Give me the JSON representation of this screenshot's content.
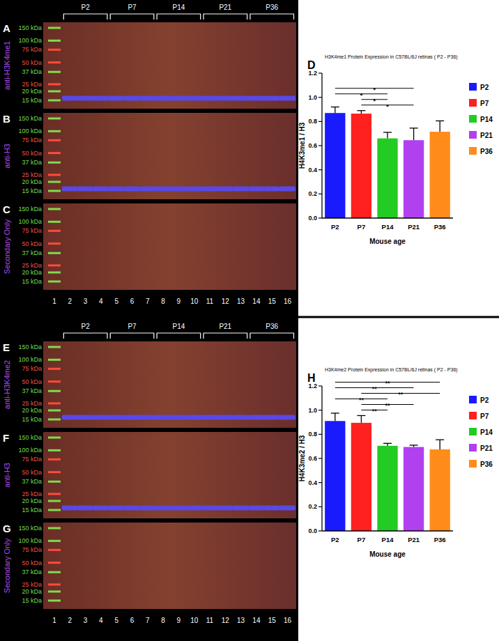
{
  "blots": [
    {
      "groups": [
        {
          "label": "P2",
          "lanes": [
            2,
            4
          ]
        },
        {
          "label": "P7",
          "lanes": [
            5,
            7
          ]
        },
        {
          "label": "P14",
          "lanes": [
            8,
            10
          ]
        },
        {
          "label": "P21",
          "lanes": [
            11,
            13
          ]
        },
        {
          "label": "P36",
          "lanes": [
            14,
            16
          ]
        }
      ],
      "lanes": [
        1,
        2,
        3,
        4,
        5,
        6,
        7,
        8,
        9,
        10,
        11,
        12,
        13,
        14,
        15,
        16
      ],
      "ladder": [
        {
          "value": 150,
          "label": "150 kDa",
          "color": "#7fdc4f"
        },
        {
          "value": 100,
          "label": "100 kDa",
          "color": "#7fdc4f"
        },
        {
          "value": 75,
          "label": "75 kDa",
          "color": "#ff4b3a"
        },
        {
          "value": 50,
          "label": "50 kDa",
          "color": "#ff4b3a"
        },
        {
          "value": 37,
          "label": "37 kDa",
          "color": "#7fdc4f"
        },
        {
          "value": 25,
          "label": "25 kDa",
          "color": "#ff4b3a"
        },
        {
          "value": 20,
          "label": "20 kDa",
          "color": "#7fdc4f"
        },
        {
          "value": 15,
          "label": "15 kDa",
          "color": "#7fdc4f"
        }
      ],
      "panels": [
        {
          "letter": "A",
          "label": "anti-H3K4me1",
          "band_kda": 16
        },
        {
          "letter": "B",
          "label": "anti-H3",
          "band_kda": 16
        },
        {
          "letter": "C",
          "label": "Secondary Only",
          "band_kda": null
        }
      ]
    },
    {
      "groups": [
        {
          "label": "P2",
          "lanes": [
            2,
            4
          ]
        },
        {
          "label": "P7",
          "lanes": [
            5,
            7
          ]
        },
        {
          "label": "P14",
          "lanes": [
            8,
            10
          ]
        },
        {
          "label": "P21",
          "lanes": [
            11,
            13
          ]
        },
        {
          "label": "P36",
          "lanes": [
            14,
            16
          ]
        }
      ],
      "lanes": [
        1,
        2,
        3,
        4,
        5,
        6,
        7,
        8,
        9,
        10,
        11,
        12,
        13,
        14,
        15,
        16
      ],
      "ladder": [
        {
          "value": 150,
          "label": "150 kDa",
          "color": "#7fdc4f"
        },
        {
          "value": 100,
          "label": "100 kDa",
          "color": "#7fdc4f"
        },
        {
          "value": 75,
          "label": "75 kDa",
          "color": "#ff4b3a"
        },
        {
          "value": 50,
          "label": "50 kDa",
          "color": "#ff4b3a"
        },
        {
          "value": 37,
          "label": "37 kDa",
          "color": "#7fdc4f"
        },
        {
          "value": 25,
          "label": "25 kDa",
          "color": "#ff4b3a"
        },
        {
          "value": 20,
          "label": "20 kDa",
          "color": "#7fdc4f"
        },
        {
          "value": 15,
          "label": "15 kDa",
          "color": "#7fdc4f"
        }
      ],
      "panels": [
        {
          "letter": "E",
          "label": "anti-H3K4me2",
          "band_kda": 16
        },
        {
          "letter": "F",
          "label": "anti-H3",
          "band_kda": 16
        },
        {
          "letter": "G",
          "label": "Secondary Only",
          "band_kda": null
        }
      ]
    }
  ],
  "chart_data": [
    {
      "type": "bar",
      "panel": "D",
      "title": "H3K4me1 Protein Expression in C57BL/6J retinas ( P2 - P36)",
      "x_label": "Mouse age",
      "y_label": "H4K3me1 / H3",
      "categories": [
        "P2",
        "P7",
        "P14",
        "P21",
        "P36"
      ],
      "values": [
        0.87,
        0.865,
        0.66,
        0.645,
        0.715
      ],
      "errors": [
        0.05,
        0.025,
        0.05,
        0.1,
        0.09
      ],
      "colors": [
        "#1a1aff",
        "#ff2020",
        "#22cc22",
        "#b040f0",
        "#ff8c1a"
      ],
      "ylim": [
        0,
        1.2
      ],
      "yticks": [
        {
          "value": 0,
          "label": "0.0"
        },
        {
          "value": 0.2,
          "label": "0.2"
        },
        {
          "value": 0.4,
          "label": "0.4"
        },
        {
          "value": 0.6,
          "label": "0.6"
        },
        {
          "value": 0.8,
          "label": "0.8"
        },
        {
          "value": 1,
          "label": "1.0"
        },
        {
          "value": 1.2,
          "label": "1.2"
        }
      ],
      "legend": "right",
      "annotations": [
        {
          "text": "*",
          "between": [
            "P2",
            "P21"
          ]
        },
        {
          "text": "*",
          "between": [
            "P2",
            "P14"
          ]
        },
        {
          "text": "*",
          "between": [
            "P7",
            "P14"
          ]
        },
        {
          "text": "*",
          "between": [
            "P7",
            "P21"
          ]
        }
      ]
    },
    {
      "type": "bar",
      "panel": "H",
      "title": "H3K4me2 Protein Expression in C57BL/6J retinas ( P2 - P36)",
      "x_label": "Mouse age",
      "y_label": "H4K3me2 / H3",
      "categories": [
        "P2",
        "P7",
        "P14",
        "P21",
        "P36"
      ],
      "values": [
        0.91,
        0.895,
        0.705,
        0.695,
        0.675
      ],
      "errors": [
        0.065,
        0.06,
        0.02,
        0.015,
        0.08
      ],
      "colors": [
        "#1a1aff",
        "#ff2020",
        "#22cc22",
        "#b040f0",
        "#ff8c1a"
      ],
      "ylim": [
        0,
        1.2
      ],
      "yticks": [
        {
          "value": 0,
          "label": "0.0"
        },
        {
          "value": 0.2,
          "label": "0.2"
        },
        {
          "value": 0.4,
          "label": "0.4"
        },
        {
          "value": 0.6,
          "label": "0.6"
        },
        {
          "value": 0.8,
          "label": "0.8"
        },
        {
          "value": 1,
          "label": "1.0"
        },
        {
          "value": 1.2,
          "label": "1.2"
        }
      ],
      "legend": "right",
      "annotations": [
        {
          "text": "**",
          "between": [
            "P2",
            "P36"
          ]
        },
        {
          "text": "**",
          "between": [
            "P2",
            "P21"
          ]
        },
        {
          "text": "**",
          "between": [
            "P7",
            "P36"
          ]
        },
        {
          "text": "**",
          "between": [
            "P2",
            "P14"
          ]
        },
        {
          "text": "**",
          "between": [
            "P7",
            "P21"
          ]
        },
        {
          "text": "**",
          "between": [
            "P7",
            "P14"
          ]
        }
      ]
    }
  ]
}
